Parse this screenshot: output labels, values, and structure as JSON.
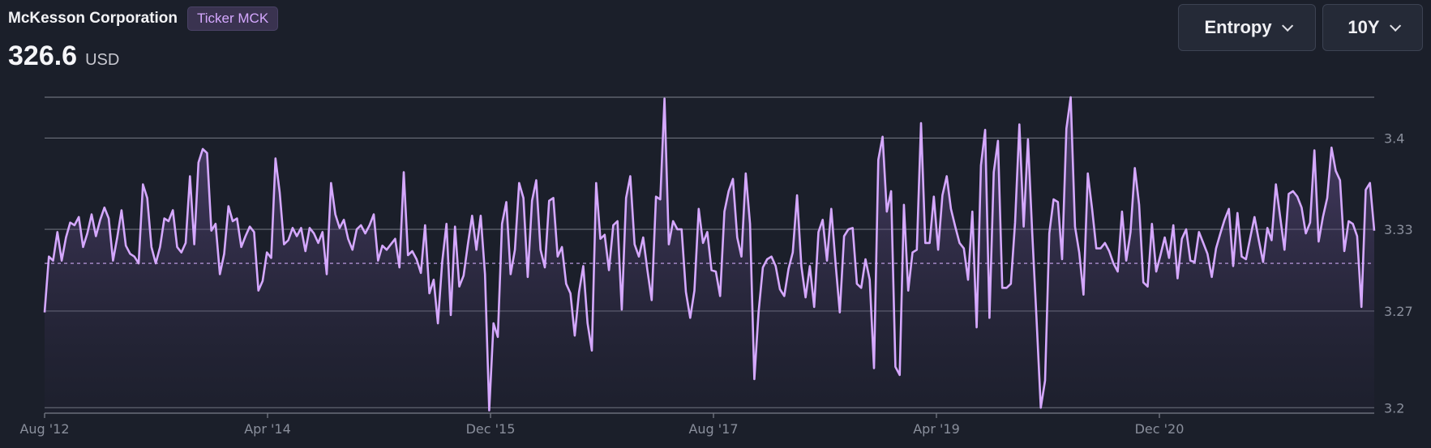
{
  "header": {
    "company": "McKesson Corporation",
    "ticker_badge": "Ticker MCK",
    "price": "326.6",
    "currency": "USD"
  },
  "controls": {
    "metric_label": "Entropy",
    "range_label": "10Y"
  },
  "colors": {
    "background": "#1b1f2a",
    "line": "#d5a8ff",
    "grid": "#6b6f7a",
    "tick_text": "#8a8f9c"
  },
  "icons": [
    "chevron-down-icon"
  ],
  "chart_data": {
    "type": "line",
    "x_tick_labels": [
      "Aug '12",
      "Apr '14",
      "Dec '15",
      "Aug '17",
      "Apr '19",
      "Dec '20"
    ],
    "y_tick_labels": [
      "3.4",
      "3.33",
      "3.27",
      "3.2"
    ],
    "y_ticks": [
      3.4,
      3.333,
      3.273,
      3.202
    ],
    "ylim": [
      3.198,
      3.43
    ],
    "reference_line": 3.308,
    "reference_style": "dashed",
    "fill": "gradient",
    "grid": "horizontal",
    "series": [
      {
        "values": [
          3.272,
          3.313,
          3.31,
          3.331,
          3.31,
          3.327,
          3.338,
          3.336,
          3.342,
          3.32,
          3.33,
          3.344,
          3.328,
          3.34,
          3.349,
          3.341,
          3.31,
          3.327,
          3.347,
          3.321,
          3.315,
          3.313,
          3.308,
          3.366,
          3.356,
          3.32,
          3.308,
          3.32,
          3.341,
          3.339,
          3.347,
          3.32,
          3.316,
          3.323,
          3.372,
          3.322,
          3.382,
          3.392,
          3.389,
          3.332,
          3.337,
          3.3,
          3.315,
          3.35,
          3.339,
          3.341,
          3.32,
          3.328,
          3.335,
          3.331,
          3.288,
          3.295,
          3.316,
          3.312,
          3.385,
          3.36,
          3.322,
          3.325,
          3.334,
          3.328,
          3.334,
          3.317,
          3.334,
          3.33,
          3.323,
          3.331,
          3.3,
          3.367,
          3.344,
          3.334,
          3.34,
          3.326,
          3.318,
          3.333,
          3.336,
          3.33,
          3.336,
          3.344,
          3.31,
          3.321,
          3.318,
          3.322,
          3.326,
          3.305,
          3.375,
          3.314,
          3.317,
          3.311,
          3.301,
          3.336,
          3.286,
          3.296,
          3.264,
          3.309,
          3.337,
          3.27,
          3.335,
          3.291,
          3.299,
          3.322,
          3.343,
          3.318,
          3.343,
          3.3,
          3.2,
          3.264,
          3.254,
          3.337,
          3.353,
          3.3,
          3.318,
          3.367,
          3.356,
          3.298,
          3.354,
          3.369,
          3.318,
          3.305,
          3.354,
          3.356,
          3.313,
          3.32,
          3.293,
          3.286,
          3.255,
          3.287,
          3.306,
          3.264,
          3.244,
          3.367,
          3.326,
          3.329,
          3.303,
          3.336,
          3.339,
          3.274,
          3.356,
          3.372,
          3.322,
          3.313,
          3.327,
          3.303,
          3.281,
          3.357,
          3.355,
          3.429,
          3.322,
          3.339,
          3.333,
          3.333,
          3.287,
          3.268,
          3.288,
          3.348,
          3.323,
          3.331,
          3.303,
          3.302,
          3.284,
          3.346,
          3.361,
          3.37,
          3.327,
          3.313,
          3.374,
          3.337,
          3.223,
          3.272,
          3.305,
          3.311,
          3.313,
          3.306,
          3.289,
          3.284,
          3.304,
          3.316,
          3.358,
          3.306,
          3.283,
          3.306,
          3.276,
          3.331,
          3.34,
          3.31,
          3.348,
          3.308,
          3.272,
          3.328,
          3.333,
          3.334,
          3.293,
          3.29,
          3.311,
          3.296,
          3.231,
          3.384,
          3.401,
          3.346,
          3.361,
          3.232,
          3.226,
          3.351,
          3.288,
          3.316,
          3.318,
          3.411,
          3.323,
          3.323,
          3.357,
          3.318,
          3.358,
          3.372,
          3.348,
          3.335,
          3.323,
          3.319,
          3.296,
          3.346,
          3.261,
          3.38,
          3.406,
          3.268,
          3.375,
          3.398,
          3.29,
          3.29,
          3.293,
          3.338,
          3.41,
          3.335,
          3.399,
          3.331,
          3.268,
          3.202,
          3.222,
          3.33,
          3.355,
          3.353,
          3.311,
          3.407,
          3.43,
          3.335,
          3.316,
          3.285,
          3.374,
          3.348,
          3.319,
          3.319,
          3.323,
          3.317,
          3.308,
          3.302,
          3.346,
          3.31,
          3.331,
          3.378,
          3.351,
          3.294,
          3.291,
          3.337,
          3.302,
          3.314,
          3.327,
          3.312,
          3.336,
          3.297,
          3.326,
          3.333,
          3.31,
          3.309,
          3.331,
          3.323,
          3.315,
          3.298,
          3.319,
          3.33,
          3.34,
          3.348,
          3.306,
          3.345,
          3.313,
          3.311,
          3.327,
          3.342,
          3.325,
          3.309,
          3.334,
          3.325,
          3.366,
          3.342,
          3.318,
          3.359,
          3.361,
          3.357,
          3.349,
          3.33,
          3.338,
          3.391,
          3.324,
          3.342,
          3.356,
          3.393,
          3.376,
          3.369,
          3.317,
          3.339,
          3.337,
          3.328,
          3.276,
          3.362,
          3.367,
          3.332
        ]
      }
    ]
  }
}
